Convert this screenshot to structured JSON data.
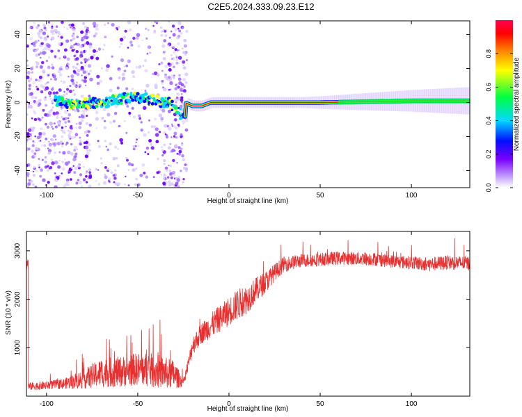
{
  "title": "C2E5.2024.333.09.23.E12",
  "colors": {
    "frame": "#000000",
    "snr_line": "#e83030",
    "colorbar": [
      "#ffffff",
      "#c8a8ff",
      "#7a00ff",
      "#0010ff",
      "#00d8ff",
      "#00ff40",
      "#ffff00",
      "#ff8000",
      "#ff0000",
      "#ff0050"
    ]
  },
  "chart_data": [
    {
      "type": "heatmap",
      "xlabel": "Height of straight line (km)",
      "ylabel": "Frequency (Hz)",
      "xlim": [
        -111,
        132
      ],
      "ylim": [
        -50,
        48
      ],
      "xticks": [
        -100,
        -50,
        0,
        50,
        100
      ],
      "yticks": [
        -40,
        -20,
        0,
        20,
        40
      ],
      "ridge": [
        {
          "x": -90,
          "y": 0
        },
        {
          "x": -80,
          "y": -1
        },
        {
          "x": -70,
          "y": 0
        },
        {
          "x": -60,
          "y": 2
        },
        {
          "x": -50,
          "y": 3
        },
        {
          "x": -40,
          "y": 1
        },
        {
          "x": -33,
          "y": 0
        },
        {
          "x": -28,
          "y": -6
        },
        {
          "x": -24,
          "y": -8
        },
        {
          "x": -24,
          "y": 0
        },
        {
          "x": -20,
          "y": -2
        },
        {
          "x": -15,
          "y": -2
        },
        {
          "x": -10,
          "y": 0
        },
        {
          "x": 0,
          "y": 0
        },
        {
          "x": 10,
          "y": 0
        },
        {
          "x": 50,
          "y": 0
        },
        {
          "x": 100,
          "y": 1
        },
        {
          "x": 132,
          "y": 1
        }
      ],
      "colorbar": {
        "label": "Normalized spectral amplitude",
        "ticks": [
          0.0,
          0.2,
          0.4,
          0.6,
          0.8
        ],
        "range": [
          0,
          1
        ]
      }
    },
    {
      "type": "line",
      "xlabel": "Height of straight line (km)",
      "ylabel": "SNR (10 * v/v)",
      "xlim": [
        -111,
        132
      ],
      "ylim": [
        0,
        3400
      ],
      "xticks": [
        -100,
        -50,
        0,
        50,
        100
      ],
      "yticks": [
        1000,
        2000,
        3000
      ],
      "series": [
        {
          "x": [
            -110,
            -100,
            -90,
            -80,
            -70,
            -60,
            -50,
            -40,
            -30,
            -25,
            -22,
            -20,
            -15,
            -10,
            -5,
            0,
            5,
            10,
            15,
            20,
            25,
            30,
            40,
            50,
            60,
            70,
            80,
            90,
            100,
            110,
            120,
            132
          ],
          "y": [
            200,
            220,
            260,
            350,
            480,
            500,
            560,
            520,
            440,
            280,
            700,
            1050,
            1300,
            1450,
            1600,
            1750,
            1900,
            2000,
            2200,
            2350,
            2550,
            2720,
            2800,
            2820,
            2850,
            2840,
            2830,
            2780,
            2760,
            2720,
            2760,
            2740
          ],
          "noise": [
            80,
            90,
            110,
            200,
            300,
            320,
            340,
            360,
            300,
            80,
            150,
            200,
            220,
            260,
            280,
            300,
            320,
            300,
            260,
            230,
            180,
            160,
            140,
            140,
            140,
            140,
            140,
            140,
            140,
            150,
            150,
            150
          ]
        }
      ]
    }
  ]
}
